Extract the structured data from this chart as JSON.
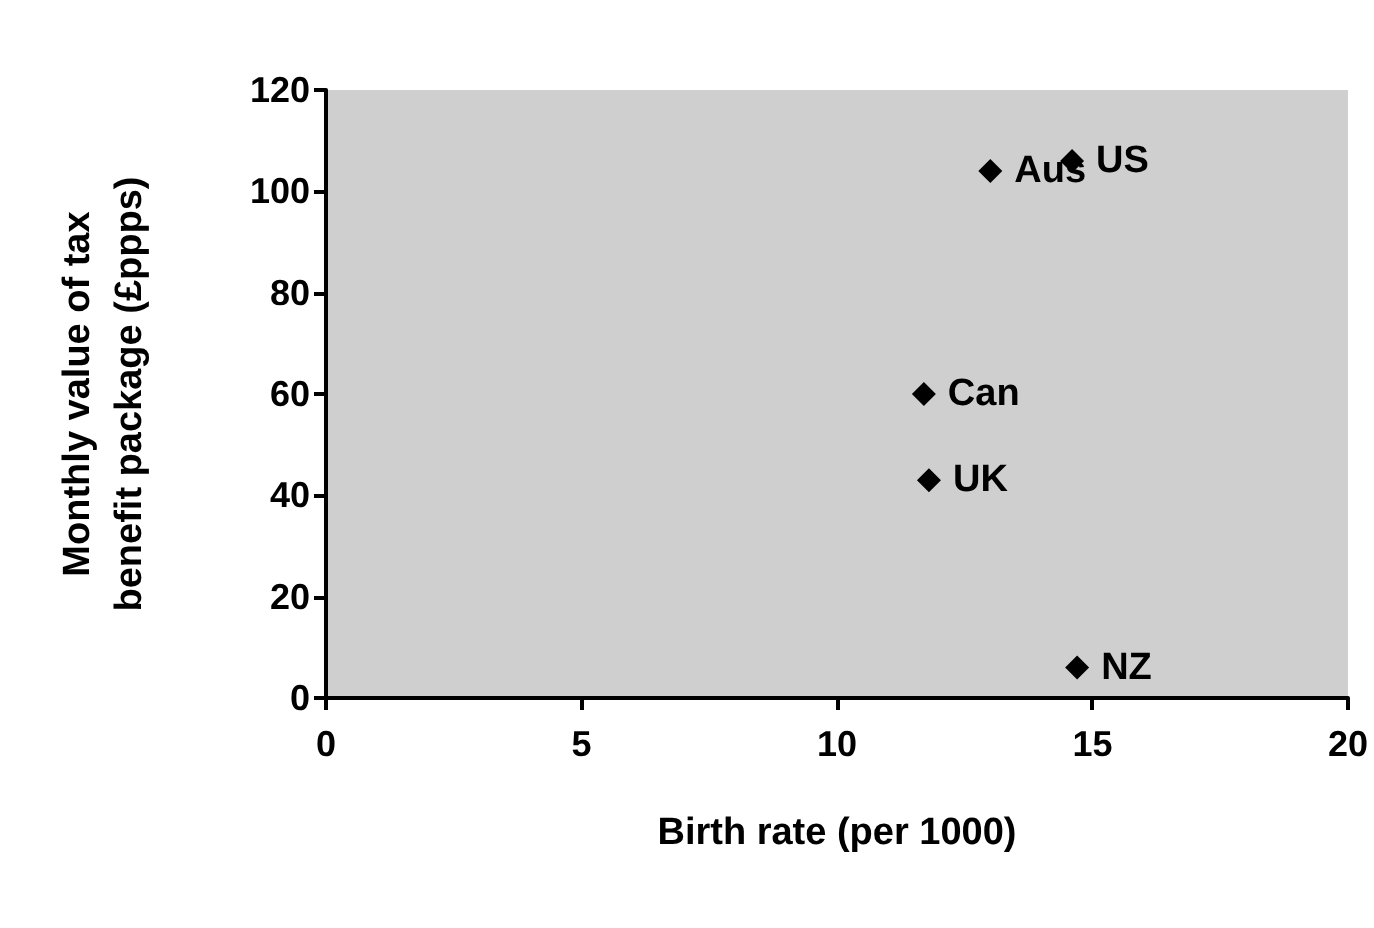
{
  "chart_data": {
    "type": "scatter",
    "xlabel": "Birth rate (per 1000)",
    "ylabel": "Monthly value of tax benefit package (£ppps)",
    "x": [
      13.0,
      14.6,
      11.7,
      11.8,
      14.7
    ],
    "values": [
      104,
      106,
      60,
      43,
      6
    ],
    "value_labels": [
      "Aus",
      "US",
      "Can",
      "UK",
      "NZ"
    ],
    "color": "#000000",
    "marker": "diamond",
    "xlim": [
      0,
      20
    ],
    "xticks": [
      0,
      5,
      10,
      15,
      20
    ],
    "ylim": [
      0,
      120
    ],
    "yticks": [
      0,
      20,
      40,
      60,
      80,
      100,
      120
    ]
  }
}
